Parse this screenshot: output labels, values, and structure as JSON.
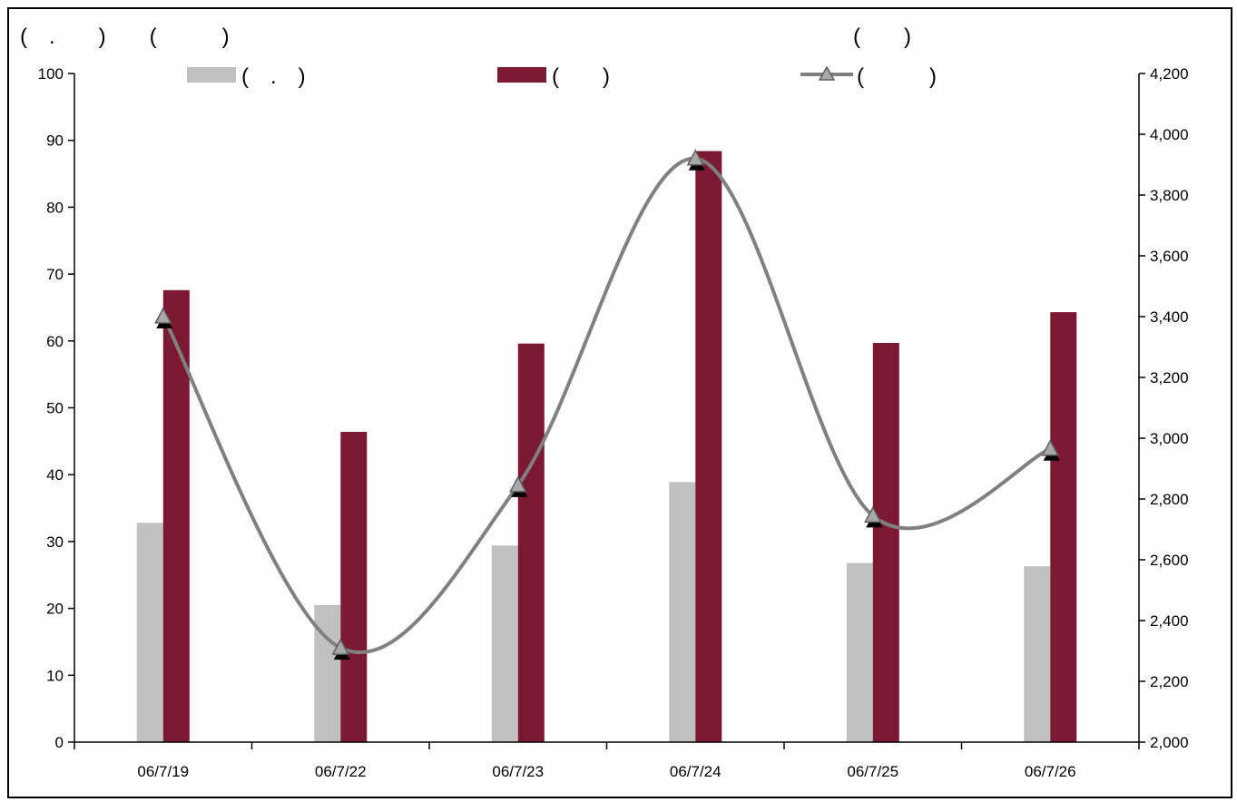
{
  "chart_data": {
    "type": "bar+line",
    "title_left": "(　.　　)　　(　　　)",
    "title_right": "(　　)",
    "categories": [
      "06/7/19",
      "06/7/22",
      "06/7/23",
      "06/7/24",
      "06/7/25",
      "06/7/26"
    ],
    "series": [
      {
        "name": "(　.　)",
        "type": "bar",
        "axis": "left",
        "color": "#c0c0c0",
        "values": [
          32.8,
          20.5,
          29.4,
          38.9,
          26.8,
          26.3
        ]
      },
      {
        "name": "(　　)",
        "type": "bar",
        "axis": "left",
        "color": "#7b1832",
        "values": [
          67.6,
          46.4,
          59.6,
          88.4,
          59.7,
          64.3
        ]
      },
      {
        "name": "(　　　)",
        "type": "line",
        "axis": "right",
        "color": "#808080",
        "marker": "triangle",
        "smooth": true,
        "values": [
          3400,
          2310,
          2845,
          3920,
          2745,
          2965
        ]
      }
    ],
    "ylim_left": [
      0,
      100
    ],
    "yticks_left": [
      0,
      10,
      20,
      30,
      40,
      50,
      60,
      70,
      80,
      90,
      100
    ],
    "ylim_right": [
      2000,
      4200
    ],
    "yticks_right": [
      2000,
      2200,
      2400,
      2600,
      2800,
      3000,
      3200,
      3400,
      3600,
      3800,
      4000,
      4200
    ],
    "ytick_labels_right": [
      "2,000",
      "2,200",
      "2,400",
      "2,600",
      "2,800",
      "3,000",
      "3,200",
      "3,400",
      "3,600",
      "3,800",
      "4,000",
      "4,200"
    ],
    "grid": false,
    "legend_position": "top"
  }
}
